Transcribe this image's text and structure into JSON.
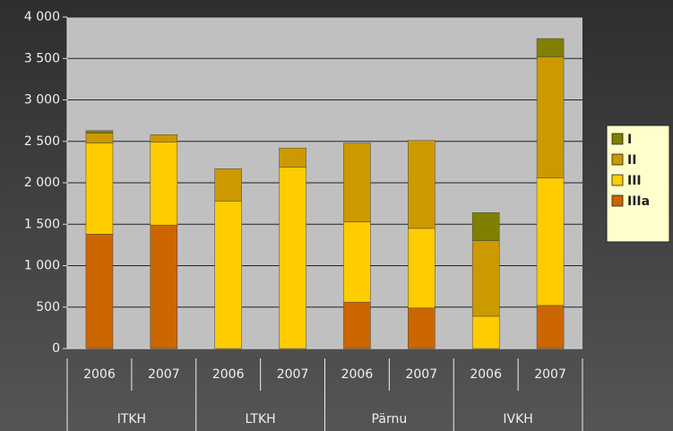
{
  "chart_data": {
    "type": "stacked_bar",
    "categories": [
      "2006",
      "2007",
      "2006",
      "2007",
      "2006",
      "2007",
      "2006",
      "2007"
    ],
    "groups": [
      "ITKH",
      "LTKH",
      "Pärnu",
      "IVKH"
    ],
    "series": [
      {
        "name": "IIIa",
        "color": "#cc6600",
        "values": [
          1380,
          1490,
          0,
          0,
          560,
          490,
          0,
          520
        ]
      },
      {
        "name": "III",
        "color": "#ffcc00",
        "values": [
          1100,
          1000,
          1780,
          2190,
          970,
          960,
          390,
          1540
        ]
      },
      {
        "name": "II",
        "color": "#cc9900",
        "values": [
          120,
          90,
          390,
          230,
          950,
          1060,
          910,
          1460
        ]
      },
      {
        "name": "I",
        "color": "#808000",
        "values": [
          30,
          0,
          0,
          0,
          0,
          0,
          340,
          220
        ]
      }
    ],
    "ylim": [
      0,
      4000
    ],
    "yticks": [
      0,
      500,
      {
        "value": 1000,
        "label": "1 000"
      },
      {
        "value": 1500,
        "label": "1 500"
      },
      {
        "value": 2000,
        "label": "2 000"
      },
      {
        "value": 2500,
        "label": "2 500"
      },
      {
        "value": 3000,
        "label": "3 000"
      },
      {
        "value": 3500,
        "label": "3 500"
      },
      {
        "value": 4000,
        "label": "4 000"
      }
    ],
    "grid": true,
    "legend": "right"
  }
}
